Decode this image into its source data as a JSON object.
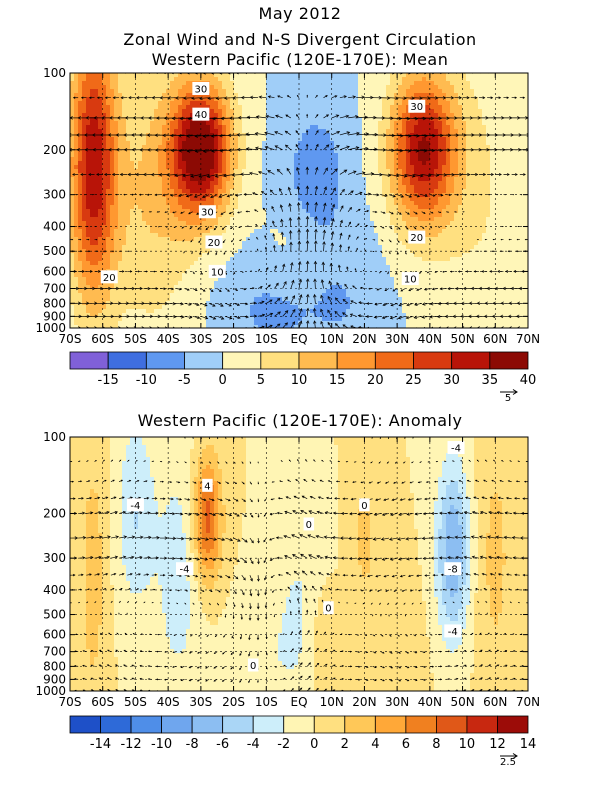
{
  "chart_data": [
    {
      "type": "heatmap",
      "title": "May 2012",
      "subtitle_line1": "Zonal Wind and N-S Divergent Circulation",
      "subtitle_line2": "Western Pacific (120E-170E): Mean",
      "x_ticks": [
        "70S",
        "60S",
        "50S",
        "40S",
        "30S",
        "20S",
        "10S",
        "EQ",
        "10N",
        "20N",
        "30N",
        "40N",
        "50N",
        "60N",
        "70N"
      ],
      "y_ticks": [
        "100",
        "200",
        "300",
        "400",
        "500",
        "600",
        "700",
        "800",
        "900",
        "1000"
      ],
      "y_scale": "log-pressure",
      "colorbar_labels": [
        "-15",
        "-10",
        "-5",
        "0",
        "5",
        "10",
        "15",
        "20",
        "25",
        "30",
        "35",
        "40"
      ],
      "colorbar_colors": [
        "#8060d8",
        "#3f6ee0",
        "#5f98f0",
        "#a0cef8",
        "#fff6b8",
        "#ffe080",
        "#ffbb50",
        "#ff9830",
        "#f06a18",
        "#d83a10",
        "#b81408",
        "#8c0a04"
      ],
      "contour_labels": [
        {
          "text": "30",
          "lat": -30,
          "p": 115
        },
        {
          "text": "40",
          "lat": -30,
          "p": 145
        },
        {
          "text": "30",
          "lat": -28,
          "p": 350
        },
        {
          "text": "20",
          "lat": -26,
          "p": 460
        },
        {
          "text": "10",
          "lat": -25,
          "p": 600
        },
        {
          "text": "20",
          "lat": -58,
          "p": 630
        },
        {
          "text": "30",
          "lat": 36,
          "p": 135
        },
        {
          "text": "20",
          "lat": 36,
          "p": 440
        },
        {
          "text": "10",
          "lat": 34,
          "p": 640
        }
      ],
      "vector_scale_label": "5"
    },
    {
      "type": "heatmap",
      "title": "Western Pacific (120E-170E): Anomaly",
      "x_ticks": [
        "70S",
        "60S",
        "50S",
        "40S",
        "30S",
        "20S",
        "10S",
        "EQ",
        "10N",
        "20N",
        "30N",
        "40N",
        "50N",
        "60N",
        "70N"
      ],
      "y_ticks": [
        "100",
        "200",
        "300",
        "400",
        "500",
        "600",
        "700",
        "800",
        "900",
        "1000"
      ],
      "y_scale": "log-pressure",
      "colorbar_labels": [
        "-14",
        "-12",
        "-10",
        "-8",
        "-6",
        "-4",
        "-2",
        "0",
        "2",
        "4",
        "6",
        "8",
        "10",
        "12",
        "14"
      ],
      "colorbar_colors": [
        "#1e50c8",
        "#2e6ad8",
        "#4f8ee8",
        "#6fa6ee",
        "#8cbef2",
        "#aad6f6",
        "#cdeefa",
        "#fff5b4",
        "#ffe080",
        "#ffc858",
        "#ffa838",
        "#f08020",
        "#e05818",
        "#c82810",
        "#9c0c08"
      ],
      "contour_labels": [
        {
          "text": "4",
          "lat": -28,
          "p": 155
        },
        {
          "text": "-4",
          "lat": -50,
          "p": 185
        },
        {
          "text": "-4",
          "lat": -35,
          "p": 330
        },
        {
          "text": "0",
          "lat": 3,
          "p": 220
        },
        {
          "text": "0",
          "lat": 20,
          "p": 185
        },
        {
          "text": "0",
          "lat": 9,
          "p": 470
        },
        {
          "text": "-4",
          "lat": 48,
          "p": 110
        },
        {
          "text": "-8",
          "lat": 47,
          "p": 330
        },
        {
          "text": "-4",
          "lat": 47,
          "p": 580
        },
        {
          "text": "0",
          "lat": -14,
          "p": 790
        }
      ],
      "vector_scale_label": "2.5"
    }
  ]
}
